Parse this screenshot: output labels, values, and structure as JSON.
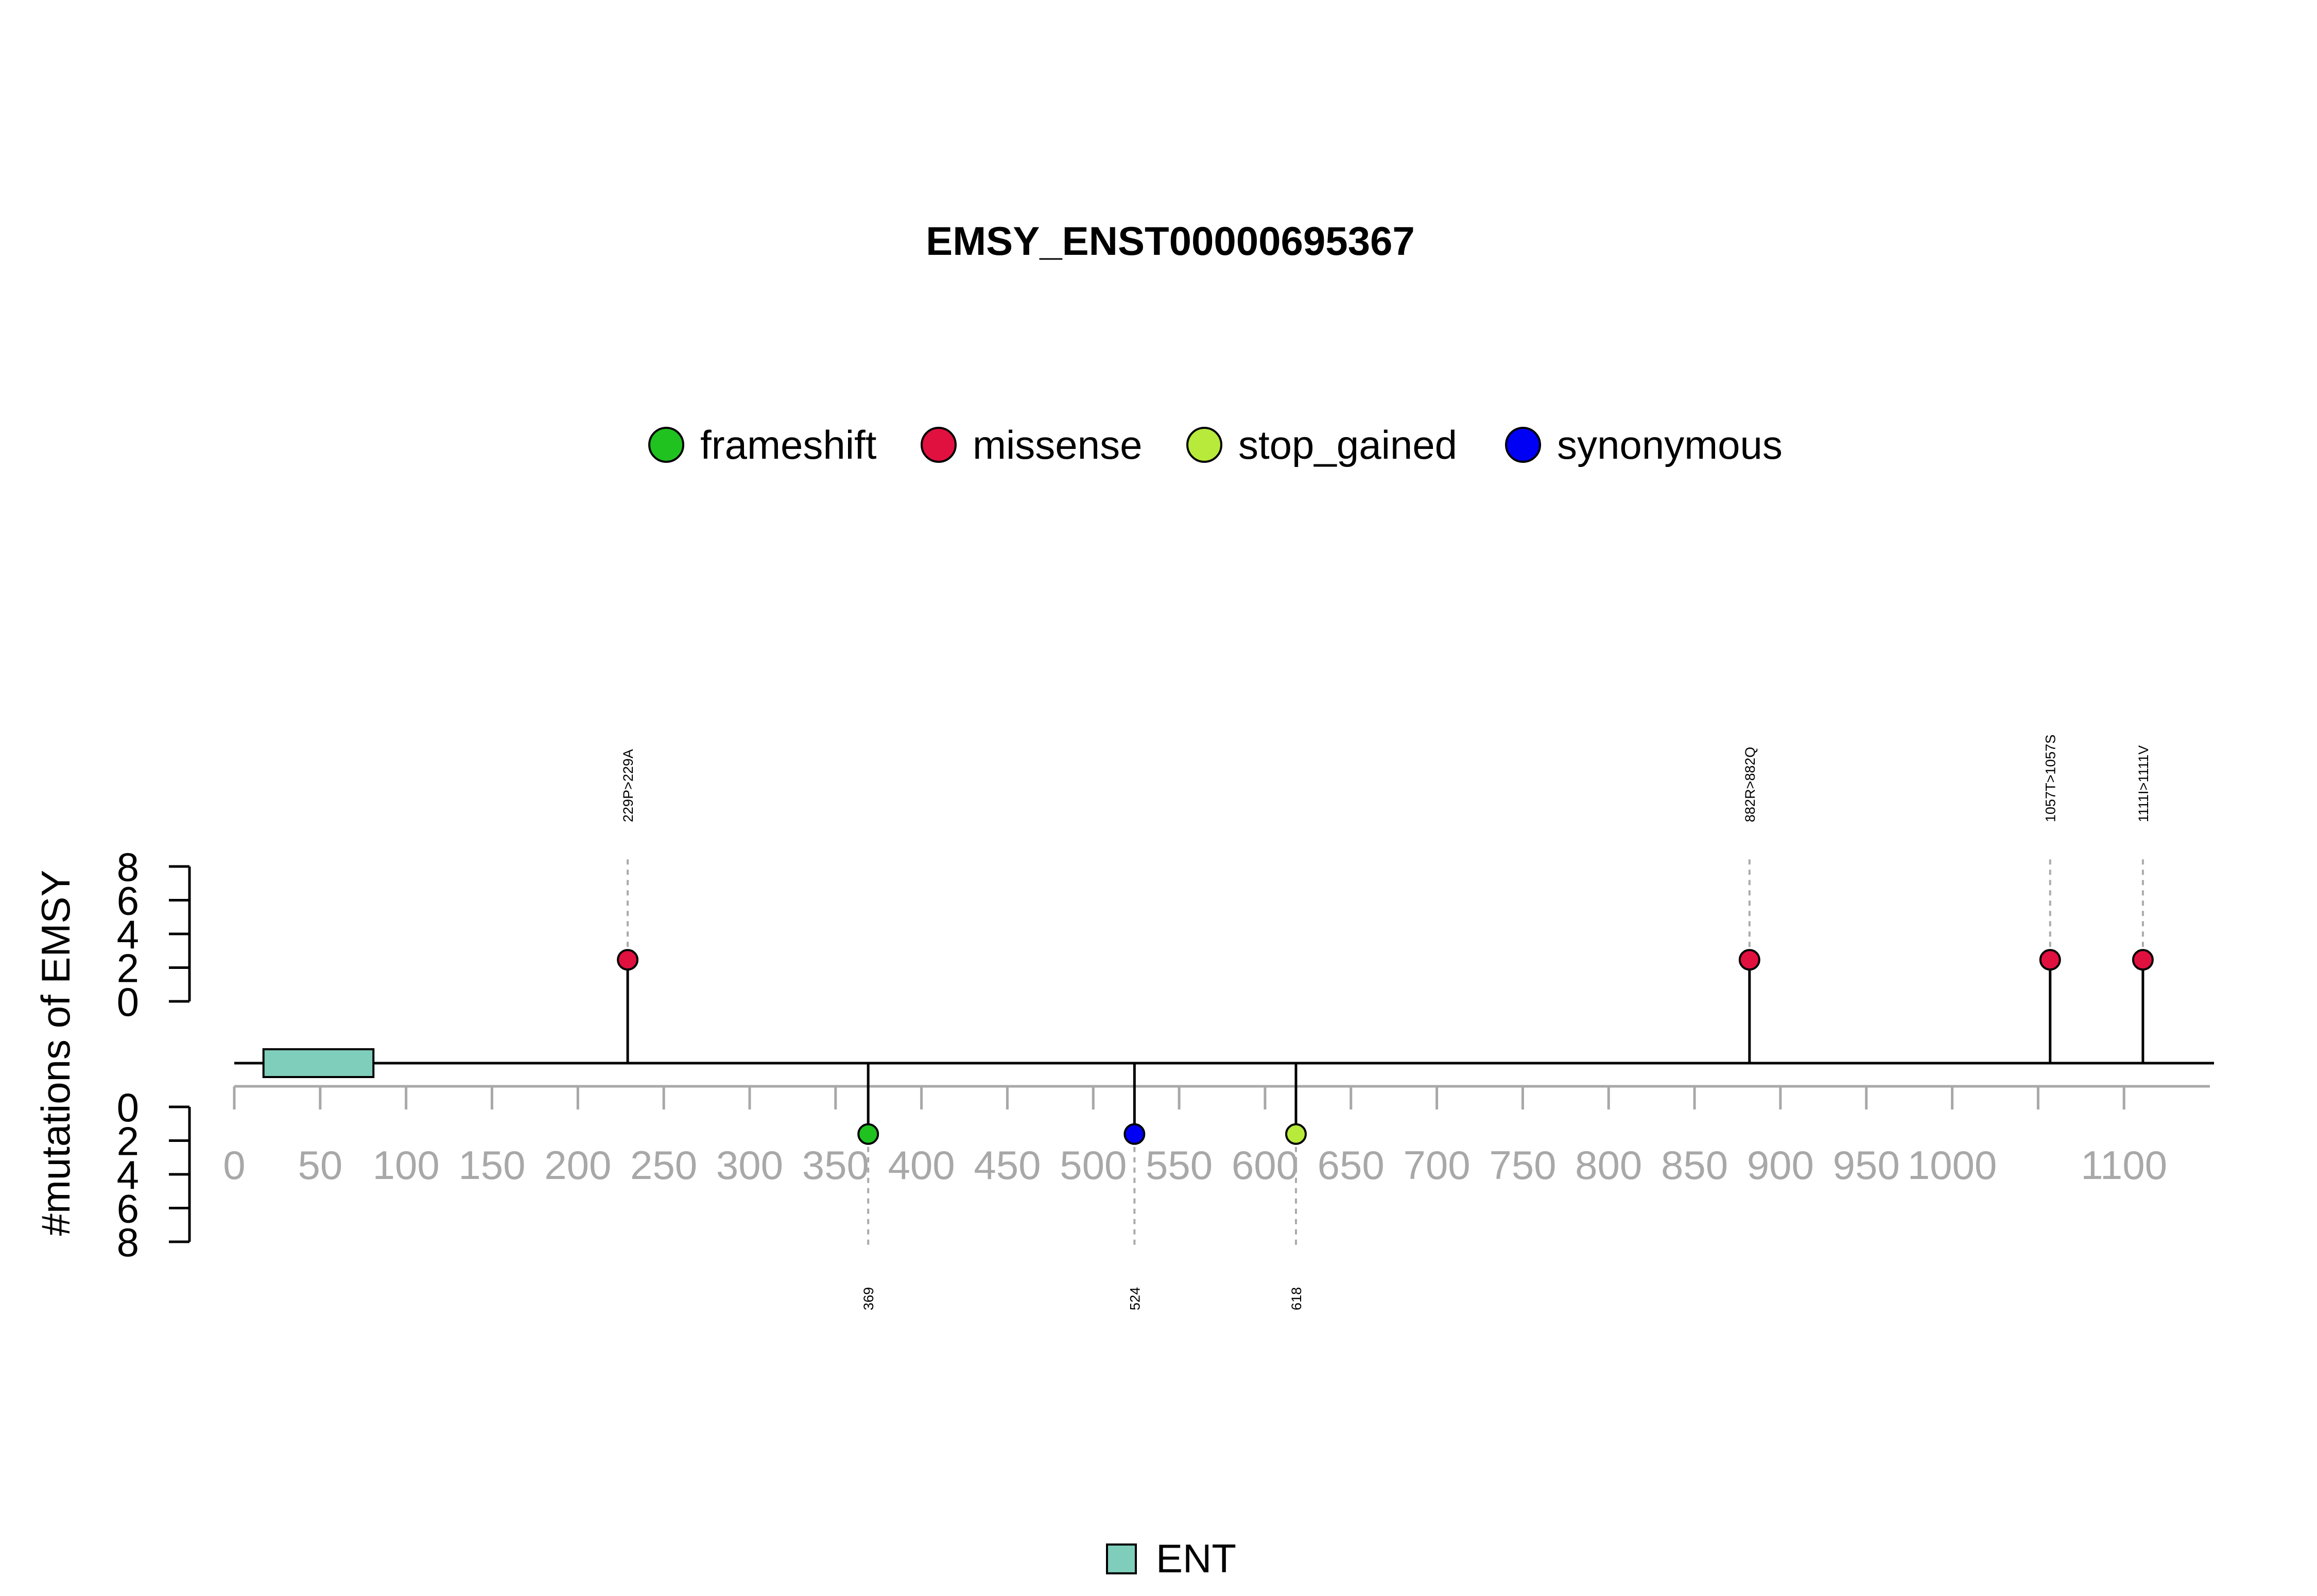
{
  "chart_data": {
    "type": "lollipop",
    "title": "EMSY_ENST00000695367",
    "ylabel": "#mutations of EMSY",
    "legend": [
      {
        "name": "frameshift",
        "color": "#1fc21f"
      },
      {
        "name": "missense",
        "color": "#e0103f"
      },
      {
        "name": "stop_gained",
        "color": "#b7ea3a"
      },
      {
        "name": "synonymous",
        "color": "#0000f5"
      }
    ],
    "x_ticks": [
      0,
      50,
      100,
      150,
      200,
      250,
      300,
      350,
      400,
      450,
      500,
      550,
      600,
      650,
      700,
      750,
      800,
      850,
      900,
      950,
      1000,
      1100
    ],
    "x_minor_ticks": [
      1050
    ],
    "xlim": [
      0,
      1150
    ],
    "y_ticks": [
      0,
      2,
      4,
      6,
      8
    ],
    "ylim": [
      0,
      8
    ],
    "mutations": [
      {
        "position": 229,
        "label": "229P>229A",
        "type": "missense",
        "count": 1,
        "side": "top"
      },
      {
        "position": 882,
        "label": "882R>882Q",
        "type": "missense",
        "count": 1,
        "side": "top"
      },
      {
        "position": 1057,
        "label": "1057T>1057S",
        "type": "missense",
        "count": 1,
        "side": "top"
      },
      {
        "position": 1111,
        "label": "1111I>1111V",
        "type": "missense",
        "count": 1,
        "side": "top"
      },
      {
        "position": 369,
        "label": "369",
        "type": "frameshift",
        "count": 1,
        "side": "bottom"
      },
      {
        "position": 524,
        "label": "524",
        "type": "synonymous",
        "count": 1,
        "side": "bottom"
      },
      {
        "position": 618,
        "label": "618",
        "type": "stop_gained",
        "count": 1,
        "side": "bottom"
      }
    ],
    "domains": [
      {
        "name": "ENT",
        "start": 17,
        "end": 81,
        "color": "#7fcdbb"
      }
    ]
  }
}
